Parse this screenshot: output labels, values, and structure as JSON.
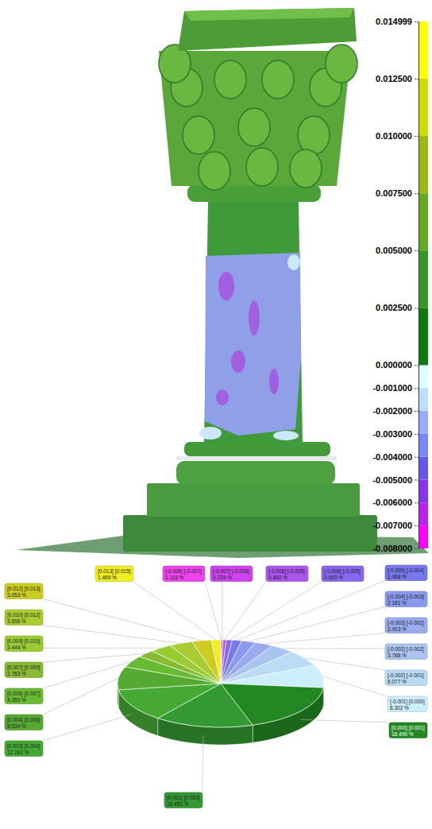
{
  "chart_data": [
    {
      "type": "colorbar",
      "ylim": [
        -0.008,
        0.014999
      ],
      "yticks": [
        {
          "value": -0.008,
          "label": "-0.008000"
        },
        {
          "value": -0.007,
          "label": "-0.007000"
        },
        {
          "value": -0.006,
          "label": "-0.006000"
        },
        {
          "value": -0.005,
          "label": "-0.005000"
        },
        {
          "value": -0.004,
          "label": "-0.004000"
        },
        {
          "value": -0.003,
          "label": "-0.003000"
        },
        {
          "value": -0.002,
          "label": "-0.002000"
        },
        {
          "value": -0.001,
          "label": "-0.001000"
        },
        {
          "value": 0,
          "label": "0.000000"
        },
        {
          "value": 0.0025,
          "label": "0.002500"
        },
        {
          "value": 0.005,
          "label": "0.005000"
        },
        {
          "value": 0.0075,
          "label": "0.007500"
        },
        {
          "value": 0.01,
          "label": "0.010000"
        },
        {
          "value": 0.0125,
          "label": "0.012500"
        },
        0.014999
      ],
      "bins": [
        -0.008,
        -0.007,
        -0.006,
        -0.005,
        -0.004,
        -0.003,
        -0.002,
        -0.001,
        0,
        0.0025,
        0.005,
        0.0075,
        0.01,
        0.0125,
        0.014999
      ],
      "colors": [
        "#ff00ff",
        "#bb22ee",
        "#8833ee",
        "#6655ee",
        "#7788ff",
        "#99aaff",
        "#bbddff",
        "#ddffff",
        "#117711",
        "#339922",
        "#66aa22",
        "#99bb11",
        "#ccdd00",
        "#ffff00"
      ]
    },
    {
      "type": "pie",
      "data_labels": true,
      "categories": [
        "[-0.008] [-0.007]",
        "[-0.007] [-0.006]",
        "[-0.006] [-0.005]",
        "[-0.006] [-0.005]",
        "[-0.005] [-0.004]",
        "[-0.004] [-0.003]",
        "[-0.003] [-0.002]",
        "[-0.002] [-0.002]",
        "[-0.002] [-0.001]",
        "[-0.001] [0.000]",
        "[0.000] [0.001]",
        "[0.001] [0.003]",
        "[0.003] [0.004]",
        "[0.004] [0.006]",
        "[0.006] [0.007]",
        "[0.007] [0.009]",
        "[0.009] [0.010]",
        "[0.010] [0.012]",
        "[0.012] [0.013]",
        "[0.013] [0.015]"
      ],
      "values": [
        0.116,
        0.239,
        0.492,
        0.933,
        1.468,
        2.181,
        2.903,
        3.788,
        6.077,
        8.302,
        18.49,
        15.451,
        12.263,
        8.534,
        4.359,
        2.783,
        3.444,
        3.656,
        3.053,
        1.469
      ],
      "value_labels": [
        "0.116 %",
        "0.239 %",
        "0.492 %",
        "0.933 %",
        "1.468 %",
        "2.181 %",
        "2.903 %",
        "3.788 %",
        "6.077 %",
        "8.302 %",
        "18.490 %",
        "15.451 %",
        "12.263 %",
        "8.534 %",
        "4.359 %",
        "2.783 %",
        "3.444 %",
        "3.656 %",
        "3.053 %",
        "1.469 %"
      ],
      "colors": [
        "#ee44ee",
        "#cc44ee",
        "#aa55ee",
        "#8866ee",
        "#7777ee",
        "#8899ee",
        "#99aaee",
        "#aac4f0",
        "#bbdcf5",
        "#cceefa",
        "#228822",
        "#339933",
        "#44aa33",
        "#55aa33",
        "#66bb33",
        "#88bb33",
        "#99cc33",
        "#aacc33",
        "#cccc22",
        "#eeee22"
      ]
    }
  ]
}
